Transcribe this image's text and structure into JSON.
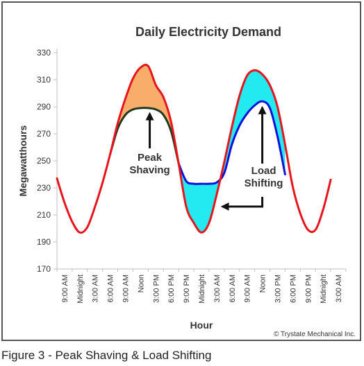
{
  "caption": "Figure 3 - Peak Shaving & Load Shifting",
  "copyright": "© Trystate Mechanical Inc.",
  "colors": {
    "demand": "#e8141c",
    "peak_shaved": "#1e3a20",
    "load_shifted": "#1010d8",
    "peak_fill": "#f9ad6a",
    "shift_fill": "#22eaf0",
    "axis": "#bfbfbf",
    "arrow": "#111111"
  },
  "chart_data": {
    "type": "line",
    "title": "Daily Electricity Demand",
    "xlabel": "Hour",
    "ylabel": "Megawatthours",
    "ylim": [
      170,
      330
    ],
    "yticks": [
      170,
      190,
      210,
      230,
      250,
      270,
      290,
      310,
      330
    ],
    "grid": false,
    "categories": [
      "9:00 AM",
      "Midnight",
      "3:00 AM",
      "6:00 AM",
      "9:00 AM",
      "Noon",
      "3:00 PM",
      "6:00 PM",
      "9:00 PM",
      "Midnight",
      "3:00 AM",
      "6:00 AM",
      "9:00 AM",
      "Noon",
      "3:00 PM",
      "6:00 PM",
      "9:00 PM",
      "Midnight",
      "3:00 AM"
    ],
    "series": [
      {
        "key": "demand",
        "x": [
          0,
          0.5,
          1,
          1.5,
          2,
          2.5,
          3,
          3.5,
          4,
          4.5,
          5,
          5.5,
          6,
          6.5,
          7,
          7.5,
          8,
          8.5,
          9,
          9.5,
          10,
          10.5,
          11,
          11.5,
          12,
          12.5,
          13,
          13.5,
          14,
          14.5,
          15,
          15.5,
          16,
          16.5,
          17,
          17.5,
          18
        ],
        "values": [
          237,
          219,
          205,
          197,
          201,
          216,
          234,
          255,
          278,
          296,
          311,
          319,
          320,
          306,
          297,
          279,
          248,
          216,
          204,
          197,
          204,
          225,
          249,
          275,
          298,
          313,
          317,
          314,
          306,
          290,
          262,
          231,
          211,
          199,
          199,
          214,
          236
        ]
      },
      {
        "key": "peak_shaved",
        "x": [
          3.5,
          4,
          4.5,
          5,
          5.5,
          6,
          6.5,
          7,
          7.5,
          8
        ],
        "values": [
          255,
          274,
          284,
          288,
          289,
          289,
          288,
          284,
          272,
          248
        ]
      },
      {
        "key": "load_shifted",
        "x": [
          8,
          8.5,
          9,
          9.5,
          10,
          10.5,
          11,
          11.5,
          12,
          12.5,
          13,
          13.5,
          14,
          14.5,
          15
        ],
        "values": [
          248,
          235,
          233,
          233,
          233,
          234,
          241,
          262,
          276,
          285,
          291,
          294,
          289,
          268,
          240
        ]
      }
    ],
    "annotations": [
      {
        "key": "peak",
        "lines": [
          "Peak",
          "Shaving"
        ]
      },
      {
        "key": "load",
        "lines": [
          "Load",
          "Shifting"
        ]
      }
    ]
  }
}
